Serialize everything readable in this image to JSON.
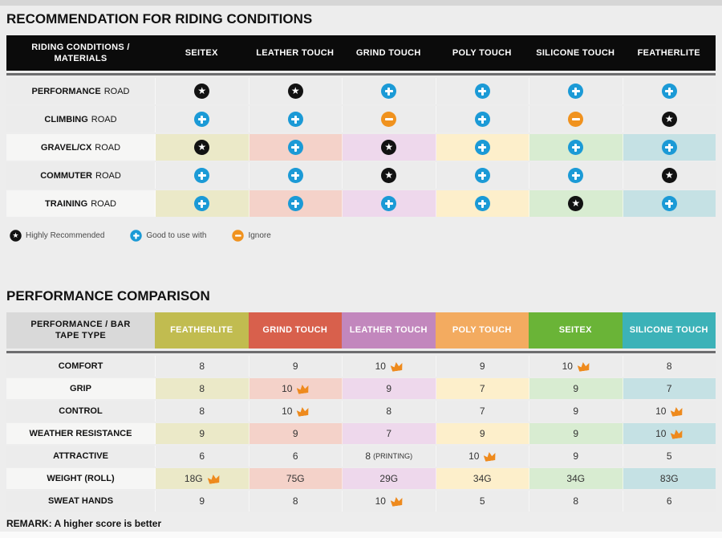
{
  "colors": {
    "page_bg": "#ededed",
    "header_black": "#0b0b0b",
    "row_gray": "#ececec",
    "crown": "#ee8a1d",
    "icons": {
      "star": "#121212",
      "plus": "#1b9ad6",
      "minus": "#f0921e"
    },
    "column_tints": [
      "#ebe9c8",
      "#f4d2c9",
      "#eed8ec",
      "#fdefcb",
      "#d8ecd1",
      "#c5e1e4"
    ]
  },
  "table1": {
    "title": "RECOMMENDATION FOR RIDING CONDITIONS",
    "header": {
      "label": "RIDING CONDITIONS / MATERIALS",
      "columns": [
        "SEITEX",
        "LEATHER TOUCH",
        "GRIND TOUCH",
        "POLY TOUCH",
        "SILICONE TOUCH",
        "FEATHERLITE"
      ]
    },
    "rows": [
      {
        "label_bold": "PERFORMANCE",
        "label_rest": "ROAD",
        "tinted": false,
        "cells": [
          "star",
          "star",
          "plus",
          "plus",
          "plus",
          "plus"
        ]
      },
      {
        "label_bold": "CLIMBING",
        "label_rest": "ROAD",
        "tinted": false,
        "cells": [
          "plus",
          "plus",
          "minus",
          "plus",
          "minus",
          "star"
        ]
      },
      {
        "label_bold": "GRAVEL/CX",
        "label_rest": "ROAD",
        "tinted": true,
        "cells": [
          "star",
          "plus",
          "star",
          "plus",
          "plus",
          "plus"
        ]
      },
      {
        "label_bold": "COMMUTER",
        "label_rest": "ROAD",
        "tinted": false,
        "cells": [
          "plus",
          "plus",
          "star",
          "plus",
          "plus",
          "star"
        ]
      },
      {
        "label_bold": "TRAINING",
        "label_rest": "ROAD",
        "tinted": true,
        "cells": [
          "plus",
          "plus",
          "plus",
          "plus",
          "star",
          "plus"
        ]
      }
    ],
    "legend": [
      {
        "icon": "star",
        "label": "Highly Recommended"
      },
      {
        "icon": "plus",
        "label": "Good to use with"
      },
      {
        "icon": "minus",
        "label": "Ignore"
      }
    ]
  },
  "table2": {
    "title": "PERFORMANCE COMPARISON",
    "header_label": "PERFORMANCE / BAR TAPE TYPE",
    "columns": [
      {
        "label": "FEATHERLITE",
        "color": "#c1bc50"
      },
      {
        "label": "GRIND TOUCH",
        "color": "#d8604c"
      },
      {
        "label": "LEATHER TOUCH",
        "color": "#c287bd"
      },
      {
        "label": "POLY TOUCH",
        "color": "#f3ab60"
      },
      {
        "label": "SEITEX",
        "color": "#6ab437"
      },
      {
        "label": "SILICONE TOUCH",
        "color": "#3cb2b8"
      }
    ],
    "rows": [
      {
        "label": "COMFORT",
        "tinted": false,
        "cells": [
          {
            "v": "8"
          },
          {
            "v": "9"
          },
          {
            "v": "10",
            "crown": true
          },
          {
            "v": "9"
          },
          {
            "v": "10",
            "crown": true
          },
          {
            "v": "8"
          }
        ]
      },
      {
        "label": "GRIP",
        "tinted": true,
        "cells": [
          {
            "v": "8"
          },
          {
            "v": "10",
            "crown": true
          },
          {
            "v": "9"
          },
          {
            "v": "7"
          },
          {
            "v": "9"
          },
          {
            "v": "7"
          }
        ]
      },
      {
        "label": "CONTROL",
        "tinted": false,
        "cells": [
          {
            "v": "8"
          },
          {
            "v": "10",
            "crown": true
          },
          {
            "v": "8"
          },
          {
            "v": "7"
          },
          {
            "v": "9"
          },
          {
            "v": "10",
            "crown": true
          }
        ]
      },
      {
        "label": "WEATHER RESISTANCE",
        "tinted": true,
        "cells": [
          {
            "v": "9"
          },
          {
            "v": "9"
          },
          {
            "v": "7"
          },
          {
            "v": "9"
          },
          {
            "v": "9"
          },
          {
            "v": "10",
            "crown": true
          }
        ]
      },
      {
        "label": "ATTRACTIVE",
        "tinted": false,
        "cells": [
          {
            "v": "6"
          },
          {
            "v": "6"
          },
          {
            "v": "8",
            "suffix": "(PRINTING)"
          },
          {
            "v": "10",
            "crown": true
          },
          {
            "v": "9"
          },
          {
            "v": "5"
          }
        ]
      },
      {
        "label": "WEIGHT (ROLL)",
        "tinted": true,
        "cells": [
          {
            "v": "18G",
            "crown": true
          },
          {
            "v": "75G"
          },
          {
            "v": "29G"
          },
          {
            "v": "34G"
          },
          {
            "v": "34G"
          },
          {
            "v": "83G"
          }
        ]
      },
      {
        "label": "SWEAT HANDS",
        "tinted": false,
        "cells": [
          {
            "v": "9"
          },
          {
            "v": "8"
          },
          {
            "v": "10",
            "crown": true
          },
          {
            "v": "5"
          },
          {
            "v": "8"
          },
          {
            "v": "6"
          }
        ]
      }
    ],
    "remark": "REMARK: A higher score is better"
  },
  "chart_data": [
    {
      "type": "table",
      "title": "RECOMMENDATION FOR RIDING CONDITIONS",
      "row_header": "RIDING CONDITIONS / MATERIALS",
      "columns": [
        "SEITEX",
        "LEATHER TOUCH",
        "GRIND TOUCH",
        "POLY TOUCH",
        "SILICONE TOUCH",
        "FEATHERLITE"
      ],
      "rows": [
        "PERFORMANCE ROAD",
        "CLIMBING ROAD",
        "GRAVEL/CX ROAD",
        "COMMUTER ROAD",
        "TRAINING ROAD"
      ],
      "values": [
        [
          "highly-recommended",
          "highly-recommended",
          "good-to-use-with",
          "good-to-use-with",
          "good-to-use-with",
          "good-to-use-with"
        ],
        [
          "good-to-use-with",
          "good-to-use-with",
          "ignore",
          "good-to-use-with",
          "ignore",
          "highly-recommended"
        ],
        [
          "highly-recommended",
          "good-to-use-with",
          "highly-recommended",
          "good-to-use-with",
          "good-to-use-with",
          "good-to-use-with"
        ],
        [
          "good-to-use-with",
          "good-to-use-with",
          "highly-recommended",
          "good-to-use-with",
          "good-to-use-with",
          "highly-recommended"
        ],
        [
          "good-to-use-with",
          "good-to-use-with",
          "good-to-use-with",
          "good-to-use-with",
          "highly-recommended",
          "good-to-use-with"
        ]
      ],
      "legend": [
        "Highly Recommended",
        "Good to use with",
        "Ignore"
      ]
    },
    {
      "type": "table",
      "title": "PERFORMANCE COMPARISON",
      "row_header": "PERFORMANCE / BAR TAPE TYPE",
      "columns": [
        "FEATHERLITE",
        "GRIND TOUCH",
        "LEATHER TOUCH",
        "POLY TOUCH",
        "SEITEX",
        "SILICONE TOUCH"
      ],
      "rows": [
        "COMFORT",
        "GRIP",
        "CONTROL",
        "WEATHER RESISTANCE",
        "ATTRACTIVE",
        "WEIGHT (ROLL)",
        "SWEAT HANDS"
      ],
      "values": [
        [
          "8",
          "9",
          "10 (best)",
          "9",
          "10 (best)",
          "8"
        ],
        [
          "8",
          "10 (best)",
          "9",
          "7",
          "9",
          "7"
        ],
        [
          "8",
          "10 (best)",
          "8",
          "7",
          "9",
          "10 (best)"
        ],
        [
          "9",
          "9",
          "7",
          "9",
          "9",
          "10 (best)"
        ],
        [
          "6",
          "6",
          "8 (PRINTING)",
          "10 (best)",
          "9",
          "5"
        ],
        [
          "18G (best)",
          "75G",
          "29G",
          "34G",
          "34G",
          "83G"
        ],
        [
          "9",
          "8",
          "10 (best)",
          "5",
          "8",
          "6"
        ]
      ],
      "annotation": "REMARK: A higher score is better"
    }
  ]
}
